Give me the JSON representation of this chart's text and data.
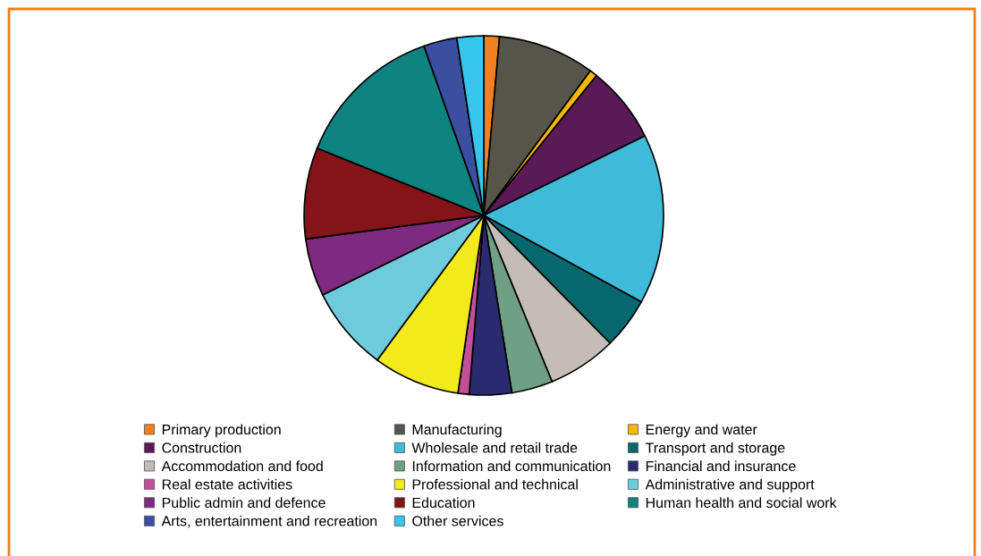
{
  "chart_data": {
    "type": "pie",
    "categories": [
      "Primary production",
      "Manufacturing",
      "Energy and water",
      "Construction",
      "Wholesale and retail trade",
      "Transport and storage",
      "Accommodation and food",
      "Information and communication",
      "Financial and insurance",
      "Real estate activities",
      "Professional and technical",
      "Administrative and support",
      "Public admin and defence",
      "Education",
      "Human health and social work",
      "Arts, entertainment and recreation",
      "Other services"
    ],
    "values": [
      1.4,
      8.7,
      0.7,
      6.9,
      15.3,
      4.6,
      6.2,
      3.7,
      3.8,
      1.0,
      7.8,
      7.6,
      5.2,
      8.2,
      13.5,
      3.0,
      2.4
    ],
    "colors": [
      "#f07f1e",
      "#55554a",
      "#f5b800",
      "#5a1a55",
      "#3fbad8",
      "#06676d",
      "#c4bcb6",
      "#6fa085",
      "#2a2a6e",
      "#c24f9a",
      "#f2ea1a",
      "#6ecbdc",
      "#7e2a7e",
      "#841418",
      "#0e8380",
      "#3a4fa0",
      "#36c5ec"
    ],
    "legend": "bottom"
  }
}
